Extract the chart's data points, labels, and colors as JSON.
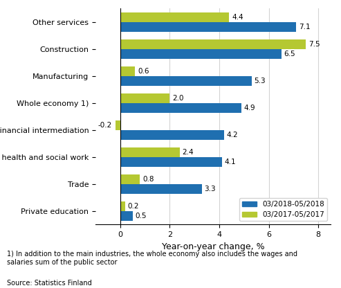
{
  "categories": [
    "Other services",
    "Construction",
    "Manufacturing",
    "Whole economy 1)",
    "Financial intermediation",
    "Private health and social work",
    "Trade",
    "Private education"
  ],
  "series_2018": [
    7.1,
    6.5,
    5.3,
    4.9,
    4.2,
    4.1,
    3.3,
    0.5
  ],
  "series_2017": [
    4.4,
    7.5,
    0.6,
    2.0,
    -0.2,
    2.4,
    0.8,
    0.2
  ],
  "color_2018": "#1f6fb0",
  "color_2017": "#b5c832",
  "legend_2018": "03/2018-05/2018",
  "legend_2017": "03/2017-05/2017",
  "xlabel": "Year-on-year change, %",
  "xlim": [
    -1,
    8.5
  ],
  "xticks": [
    0,
    2,
    4,
    6,
    8
  ],
  "footnote": "1) In addition to the main industries, the whole economy also includes the wages and\nsalaries sum of the public sector",
  "source": "Source: Statistics Finland",
  "bar_height": 0.35,
  "label_fontsize": 7.5,
  "tick_fontsize": 8,
  "xlabel_fontsize": 9
}
